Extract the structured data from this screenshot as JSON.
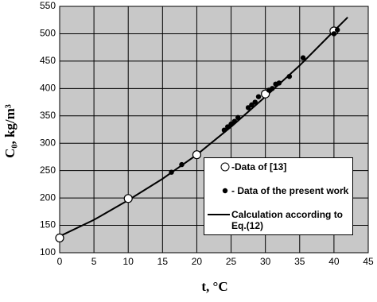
{
  "chart_data": {
    "type": "scatter",
    "x_label": "t, °C",
    "y_label": "C₀, kg/m³",
    "xlim": [
      0,
      45
    ],
    "xticks": [
      0,
      5,
      10,
      15,
      20,
      25,
      30,
      35,
      40,
      45
    ],
    "ylim": [
      100,
      550
    ],
    "yticks": [
      100,
      150,
      200,
      250,
      300,
      350,
      400,
      450,
      500,
      550
    ],
    "grid": true,
    "background": "#c8c8c8",
    "series": [
      {
        "name": "-Data of [13]",
        "marker": "open-circle",
        "color": "#000000",
        "x": [
          0,
          10,
          20,
          30,
          40
        ],
        "values": [
          127,
          199,
          279,
          390,
          505
        ]
      },
      {
        "name": "- Data of the present work",
        "marker": "dot",
        "color": "#000000",
        "x": [
          16.3,
          17.8,
          24,
          24.5,
          25,
          25.5,
          26,
          27.5,
          28,
          28.5,
          29,
          30.5,
          31,
          31.5,
          32,
          33.5,
          35.5,
          40,
          40.5
        ],
        "values": [
          247,
          261,
          324,
          330,
          335,
          340,
          347,
          365,
          370,
          375,
          385,
          397,
          400,
          408,
          410,
          422,
          456,
          500,
          507
        ]
      },
      {
        "name": "Calculation according to Eq.(12)",
        "marker": "line",
        "color": "#000000",
        "x": [
          0,
          5,
          10,
          15,
          20,
          25,
          30,
          35,
          40,
          42
        ],
        "values": [
          130,
          160,
          196,
          235,
          279,
          330,
          385,
          442,
          505,
          530
        ]
      }
    ]
  }
}
